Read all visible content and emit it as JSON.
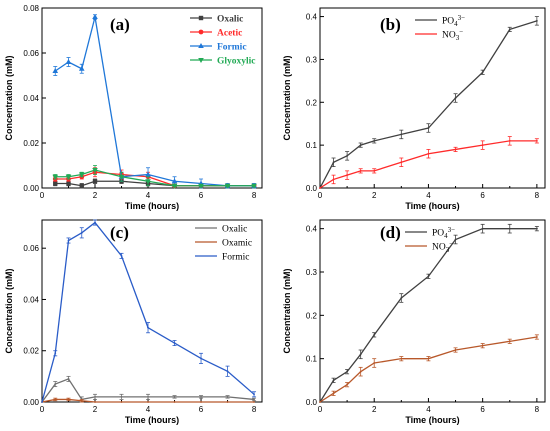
{
  "chart_data": [
    {
      "panel_label": "(a)",
      "type": "line",
      "xlabel": "Time (hours)",
      "ylabel": "Concentration (mM)",
      "xlim": [
        0,
        8.3
      ],
      "ylim": [
        0,
        0.08
      ],
      "xticks": [
        "0",
        "2",
        "4",
        "6",
        "8"
      ],
      "yticks": [
        "0.00",
        "0.02",
        "0.04",
        "0.06",
        "0.08"
      ],
      "legend_position": "top-right",
      "series": [
        {
          "name": "Oxalic",
          "color": "#404040",
          "marker": "square",
          "x": [
            0.5,
            1,
            1.5,
            2,
            3,
            4,
            5,
            6,
            7,
            8
          ],
          "y": [
            0.002,
            0.002,
            0.001,
            0.003,
            0.003,
            0.002,
            0.001,
            0.001,
            0.001,
            0.001
          ],
          "err": [
            0.001,
            0.001,
            0.001,
            0.001,
            0.001,
            0.001,
            0.0005,
            0.0005,
            0.0005,
            0.0005
          ]
        },
        {
          "name": "Acetic",
          "color": "#ff2a2a",
          "marker": "circle",
          "x": [
            0.5,
            1,
            1.5,
            2,
            3,
            4,
            5,
            6,
            7,
            8
          ],
          "y": [
            0.004,
            0.004,
            0.005,
            0.007,
            0.006,
            0.005,
            0.001,
            0.001,
            0.001,
            0.001
          ],
          "err": [
            0.001,
            0.001,
            0.001,
            0.002,
            0.002,
            0.002,
            0.0005,
            0.0005,
            0.0005,
            0.0005
          ]
        },
        {
          "name": "Formic",
          "color": "#1f77d8",
          "marker": "triangle-up",
          "x": [
            0.5,
            1,
            1.5,
            2,
            3,
            4,
            5,
            6,
            7,
            8
          ],
          "y": [
            0.052,
            0.056,
            0.053,
            0.076,
            0.005,
            0.006,
            0.003,
            0.002,
            0.001,
            0.001
          ],
          "err": [
            0.002,
            0.002,
            0.002,
            0.001,
            0.002,
            0.003,
            0.002,
            0.002,
            0.001,
            0.001
          ]
        },
        {
          "name": "Glyoxylic",
          "color": "#22aa55",
          "marker": "triangle-down",
          "x": [
            0.5,
            1,
            1.5,
            2,
            3,
            4,
            5,
            6,
            7,
            8
          ],
          "y": [
            0.005,
            0.005,
            0.006,
            0.008,
            0.005,
            0.003,
            0.001,
            0.001,
            0.001,
            0.001
          ],
          "err": [
            0.001,
            0.001,
            0.001,
            0.002,
            0.002,
            0.002,
            0.0005,
            0.0005,
            0.0005,
            0.0005
          ]
        }
      ]
    },
    {
      "panel_label": "(b)",
      "type": "line",
      "xlabel": "Time (hours)",
      "ylabel": "Concentration (mM)",
      "xlim": [
        0,
        8.3
      ],
      "ylim": [
        0,
        0.42
      ],
      "xticks": [
        "0",
        "2",
        "4",
        "6",
        "8"
      ],
      "yticks": [
        "0.0",
        "0.1",
        "0.2",
        "0.3",
        "0.4"
      ],
      "legend_position": "top-left",
      "series": [
        {
          "name": "PO4 3−",
          "name_main": "PO",
          "name_sub": "4",
          "name_sup": "3−",
          "color": "#404040",
          "marker": "none",
          "x": [
            0,
            0.5,
            1,
            1.5,
            2,
            3,
            4,
            5,
            6,
            7,
            8
          ],
          "y": [
            0.0,
            0.06,
            0.075,
            0.1,
            0.11,
            0.125,
            0.14,
            0.21,
            0.27,
            0.37,
            0.39
          ],
          "err": [
            0,
            0.01,
            0.01,
            0.005,
            0.005,
            0.01,
            0.01,
            0.01,
            0.005,
            0.005,
            0.01
          ]
        },
        {
          "name": "NO3 −",
          "name_main": "NO",
          "name_sub": "3",
          "name_sup": "−",
          "color": "#ff2a2a",
          "marker": "none",
          "x": [
            0,
            0.5,
            1,
            1.5,
            2,
            3,
            4,
            5,
            6,
            7,
            8
          ],
          "y": [
            0.0,
            0.02,
            0.03,
            0.04,
            0.04,
            0.06,
            0.08,
            0.09,
            0.1,
            0.11,
            0.11
          ],
          "err": [
            0,
            0.01,
            0.01,
            0.005,
            0.005,
            0.01,
            0.01,
            0.005,
            0.01,
            0.01,
            0.005
          ]
        }
      ]
    },
    {
      "panel_label": "(c)",
      "type": "line",
      "xlabel": "Time (hours)",
      "ylabel": "Concentration (mM)",
      "xlim": [
        0,
        8.3
      ],
      "ylim": [
        0,
        0.071
      ],
      "xticks": [
        "0",
        "2",
        "4",
        "6",
        "8"
      ],
      "yticks": [
        "0.00",
        "0.02",
        "0.04",
        "0.06"
      ],
      "legend_position": "top-right",
      "series": [
        {
          "name": "Oxalic",
          "color": "#707070",
          "marker": "none",
          "x": [
            0,
            0.5,
            1,
            1.5,
            2,
            3,
            4,
            5,
            6,
            7,
            8
          ],
          "y": [
            0.0,
            0.007,
            0.009,
            0.001,
            0.002,
            0.002,
            0.002,
            0.002,
            0.002,
            0.002,
            0.001
          ],
          "err": [
            0,
            0.001,
            0.001,
            0.001,
            0.001,
            0.001,
            0.001,
            0.0005,
            0.0005,
            0.0005,
            0.0005
          ]
        },
        {
          "name": "Oxamic",
          "color": "#b8582a",
          "marker": "none",
          "x": [
            0,
            0.5,
            1,
            1.5,
            2,
            3,
            4,
            5,
            6,
            7,
            8
          ],
          "y": [
            0.0,
            0.001,
            0.001,
            0.0005,
            0.0,
            0.0,
            0.0,
            0.0,
            0.0,
            0.0,
            0.0
          ],
          "err": [
            0,
            0.0005,
            0.0005,
            0.0005,
            0,
            0,
            0,
            0,
            0,
            0,
            0
          ]
        },
        {
          "name": "Formic",
          "color": "#2a5cc8",
          "marker": "none",
          "x": [
            0,
            0.5,
            1,
            1.5,
            2,
            3,
            4,
            5,
            6,
            7,
            8
          ],
          "y": [
            0.0,
            0.019,
            0.063,
            0.066,
            0.07,
            0.057,
            0.029,
            0.023,
            0.017,
            0.012,
            0.003
          ],
          "err": [
            0,
            0.001,
            0.001,
            0.002,
            0.001,
            0.001,
            0.002,
            0.001,
            0.002,
            0.002,
            0.001
          ]
        }
      ]
    },
    {
      "panel_label": "(d)",
      "type": "line",
      "xlabel": "Time (hours)",
      "ylabel": "Concentration (mM)",
      "xlim": [
        0,
        8.3
      ],
      "ylim": [
        0,
        0.42
      ],
      "xticks": [
        "0",
        "2",
        "4",
        "6",
        "8"
      ],
      "yticks": [
        "0.0",
        "0.1",
        "0.2",
        "0.3",
        "0.4"
      ],
      "legend_position": "top-left",
      "series": [
        {
          "name": "PO4 3−",
          "name_main": "PO",
          "name_sub": "4",
          "name_sup": "3−",
          "color": "#404040",
          "marker": "none",
          "x": [
            0,
            0.5,
            1,
            1.5,
            2,
            3,
            4,
            5,
            6,
            7,
            8
          ],
          "y": [
            0.0,
            0.05,
            0.07,
            0.11,
            0.155,
            0.24,
            0.29,
            0.375,
            0.4,
            0.4,
            0.4
          ],
          "err": [
            0,
            0.005,
            0.005,
            0.01,
            0.005,
            0.01,
            0.005,
            0.01,
            0.01,
            0.01,
            0.005
          ]
        },
        {
          "name": "NO3 −",
          "name_main": "NO",
          "name_sub": "3",
          "name_sup": "−",
          "color": "#b8582a",
          "marker": "none",
          "x": [
            0,
            0.5,
            1,
            1.5,
            2,
            3,
            4,
            5,
            6,
            7,
            8
          ],
          "y": [
            0.0,
            0.02,
            0.04,
            0.07,
            0.09,
            0.1,
            0.1,
            0.12,
            0.13,
            0.14,
            0.15
          ],
          "err": [
            0,
            0.005,
            0.005,
            0.01,
            0.01,
            0.005,
            0.005,
            0.005,
            0.005,
            0.005,
            0.005
          ]
        }
      ]
    }
  ]
}
